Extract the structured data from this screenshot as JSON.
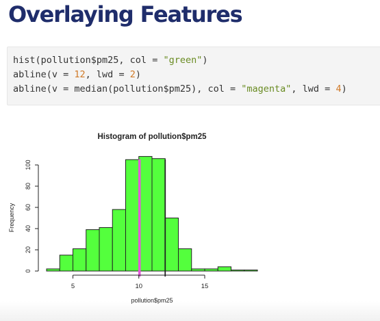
{
  "slide": {
    "title": "Overlaying Features"
  },
  "code": {
    "lines": [
      [
        {
          "t": "hist(pollution$pm25, col = ",
          "k": "plain"
        },
        {
          "t": "\"green\"",
          "k": "str"
        },
        {
          "t": ")",
          "k": "plain"
        }
      ],
      [
        {
          "t": "abline(v = ",
          "k": "plain"
        },
        {
          "t": "12",
          "k": "num"
        },
        {
          "t": ", lwd = ",
          "k": "plain"
        },
        {
          "t": "2",
          "k": "num"
        },
        {
          "t": ")",
          "k": "plain"
        }
      ],
      [
        {
          "t": "abline(v = median(pollution$pm25), col = ",
          "k": "plain"
        },
        {
          "t": "\"magenta\"",
          "k": "str"
        },
        {
          "t": ", lwd = ",
          "k": "plain"
        },
        {
          "t": "4",
          "k": "num"
        },
        {
          "t": ")",
          "k": "plain"
        }
      ]
    ]
  },
  "chart_data": {
    "type": "bar",
    "title": "Histogram of pollution$pm25",
    "xlabel": "pollution$pm25",
    "ylabel": "Frequency",
    "bin_edges": [
      3,
      4,
      5,
      6,
      7,
      8,
      9,
      10,
      11,
      12,
      13,
      14,
      15,
      16,
      17,
      18,
      19
    ],
    "values": [
      2,
      15,
      21,
      39,
      41,
      58,
      105,
      108,
      106,
      50,
      21,
      2,
      2,
      4,
      1,
      1
    ],
    "xlim": [
      3,
      19
    ],
    "ylim": [
      0,
      100
    ],
    "xticks": [
      5,
      10,
      15
    ],
    "yticks": [
      0,
      20,
      40,
      60,
      80,
      100
    ],
    "bar_color": "#54ff3d",
    "bar_edge_color": "#222222",
    "reference_lines": [
      {
        "x": 12,
        "color": "#222222",
        "lwd": 2
      },
      {
        "x": 10.05,
        "color": "#e35bd9",
        "lwd": 4
      }
    ]
  }
}
